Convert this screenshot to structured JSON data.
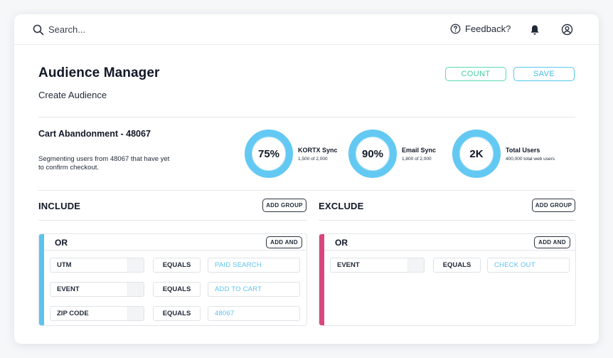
{
  "topbar": {
    "search_placeholder": "Search...",
    "feedback_label": "Feedback?"
  },
  "header": {
    "title": "Audience Manager",
    "subtitle": "Create Audience",
    "count_label": "COUNT",
    "save_label": "SAVE"
  },
  "colors": {
    "count_accent": "#44cfa2",
    "save_accent": "#48bde8",
    "ring": "#63c9f3",
    "include_bar": "#5cc3ec",
    "exclude_bar": "#d9467f"
  },
  "segment": {
    "title": "Cart Abandonment - 48067",
    "description": "Segmenting users from 48067 that have yet to confirm checkout."
  },
  "stats": [
    {
      "value": "75%",
      "label": "KORTX Sync",
      "sub": "1,500 of 2,000"
    },
    {
      "value": "90%",
      "label": "Email Sync",
      "sub": "1,800 of 2,000"
    },
    {
      "value": "2K",
      "label": "Total Users",
      "sub": "400,000 total web users"
    }
  ],
  "include": {
    "heading": "INCLUDE",
    "add_group_label": "ADD GROUP",
    "group": {
      "operator": "OR",
      "add_and_label": "ADD AND",
      "rules": [
        {
          "attribute": "UTM",
          "operator": "EQUALS",
          "value": "PAID SEARCH"
        },
        {
          "attribute": "EVENT",
          "operator": "EQUALS",
          "value": "ADD TO CART"
        },
        {
          "attribute": "ZIP CODE",
          "operator": "EQUALS",
          "value": "48067"
        }
      ]
    }
  },
  "exclude": {
    "heading": "EXCLUDE",
    "add_group_label": "ADD GROUP",
    "group": {
      "operator": "OR",
      "add_and_label": "ADD AND",
      "rules": [
        {
          "attribute": "EVENT",
          "operator": "EQUALS",
          "value": "CHECK OUT"
        }
      ]
    }
  }
}
